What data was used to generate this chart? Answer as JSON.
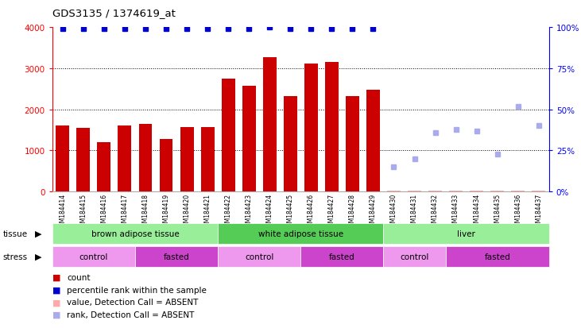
{
  "title": "GDS3135 / 1374619_at",
  "samples": [
    "GSM184414",
    "GSM184415",
    "GSM184416",
    "GSM184417",
    "GSM184418",
    "GSM184419",
    "GSM184420",
    "GSM184421",
    "GSM184422",
    "GSM184423",
    "GSM184424",
    "GSM184425",
    "GSM184426",
    "GSM184427",
    "GSM184428",
    "GSM184429",
    "GSM184430",
    "GSM184431",
    "GSM184432",
    "GSM184433",
    "GSM184434",
    "GSM184435",
    "GSM184436",
    "GSM184437"
  ],
  "bar_values": [
    1600,
    1550,
    1200,
    1600,
    1650,
    1280,
    1570,
    1570,
    2750,
    2580,
    3270,
    2320,
    3120,
    3160,
    2320,
    2470,
    30,
    30,
    30,
    30,
    30,
    30,
    30,
    30
  ],
  "bar_color": "#cc0000",
  "absent_bar_color": "#ffaaaa",
  "percentile_present": [
    99,
    99,
    99,
    99,
    99,
    99,
    99,
    99,
    99,
    99,
    100,
    99,
    99,
    99,
    99,
    99,
    null,
    null,
    null,
    null,
    null,
    null,
    null,
    null
  ],
  "percentile_color": "#0000cc",
  "absent_percentile_values": [
    null,
    null,
    null,
    null,
    null,
    null,
    null,
    null,
    null,
    null,
    null,
    null,
    null,
    null,
    null,
    null,
    15,
    20,
    36,
    38,
    37,
    23,
    52,
    40
  ],
  "absent_percentile_color": "#aaaaee",
  "absent_bar_indices": [
    16,
    17,
    18,
    19,
    20,
    21,
    22,
    23
  ],
  "ylim_left": [
    0,
    4000
  ],
  "ylim_right": [
    0,
    100
  ],
  "yticks_left": [
    0,
    1000,
    2000,
    3000,
    4000
  ],
  "yticks_right": [
    0,
    25,
    50,
    75,
    100
  ],
  "tissue_groups": [
    {
      "label": "brown adipose tissue",
      "start": 0,
      "end": 8,
      "color": "#99ee99"
    },
    {
      "label": "white adipose tissue",
      "start": 8,
      "end": 16,
      "color": "#55cc55"
    },
    {
      "label": "liver",
      "start": 16,
      "end": 24,
      "color": "#99ee99"
    }
  ],
  "stress_groups": [
    {
      "label": "control",
      "start": 0,
      "end": 4,
      "color": "#ee99ee"
    },
    {
      "label": "fasted",
      "start": 4,
      "end": 8,
      "color": "#cc44cc"
    },
    {
      "label": "control",
      "start": 8,
      "end": 12,
      "color": "#ee99ee"
    },
    {
      "label": "fasted",
      "start": 12,
      "end": 16,
      "color": "#cc44cc"
    },
    {
      "label": "control",
      "start": 16,
      "end": 19,
      "color": "#ee99ee"
    },
    {
      "label": "fasted",
      "start": 19,
      "end": 24,
      "color": "#cc44cc"
    }
  ],
  "legend_items": [
    {
      "color": "#cc0000",
      "label": "count"
    },
    {
      "color": "#0000cc",
      "label": "percentile rank within the sample"
    },
    {
      "color": "#ffaaaa",
      "label": "value, Detection Call = ABSENT"
    },
    {
      "color": "#aaaaee",
      "label": "rank, Detection Call = ABSENT"
    }
  ],
  "background_color": "#ffffff",
  "plot_bg_color": "#ffffff"
}
